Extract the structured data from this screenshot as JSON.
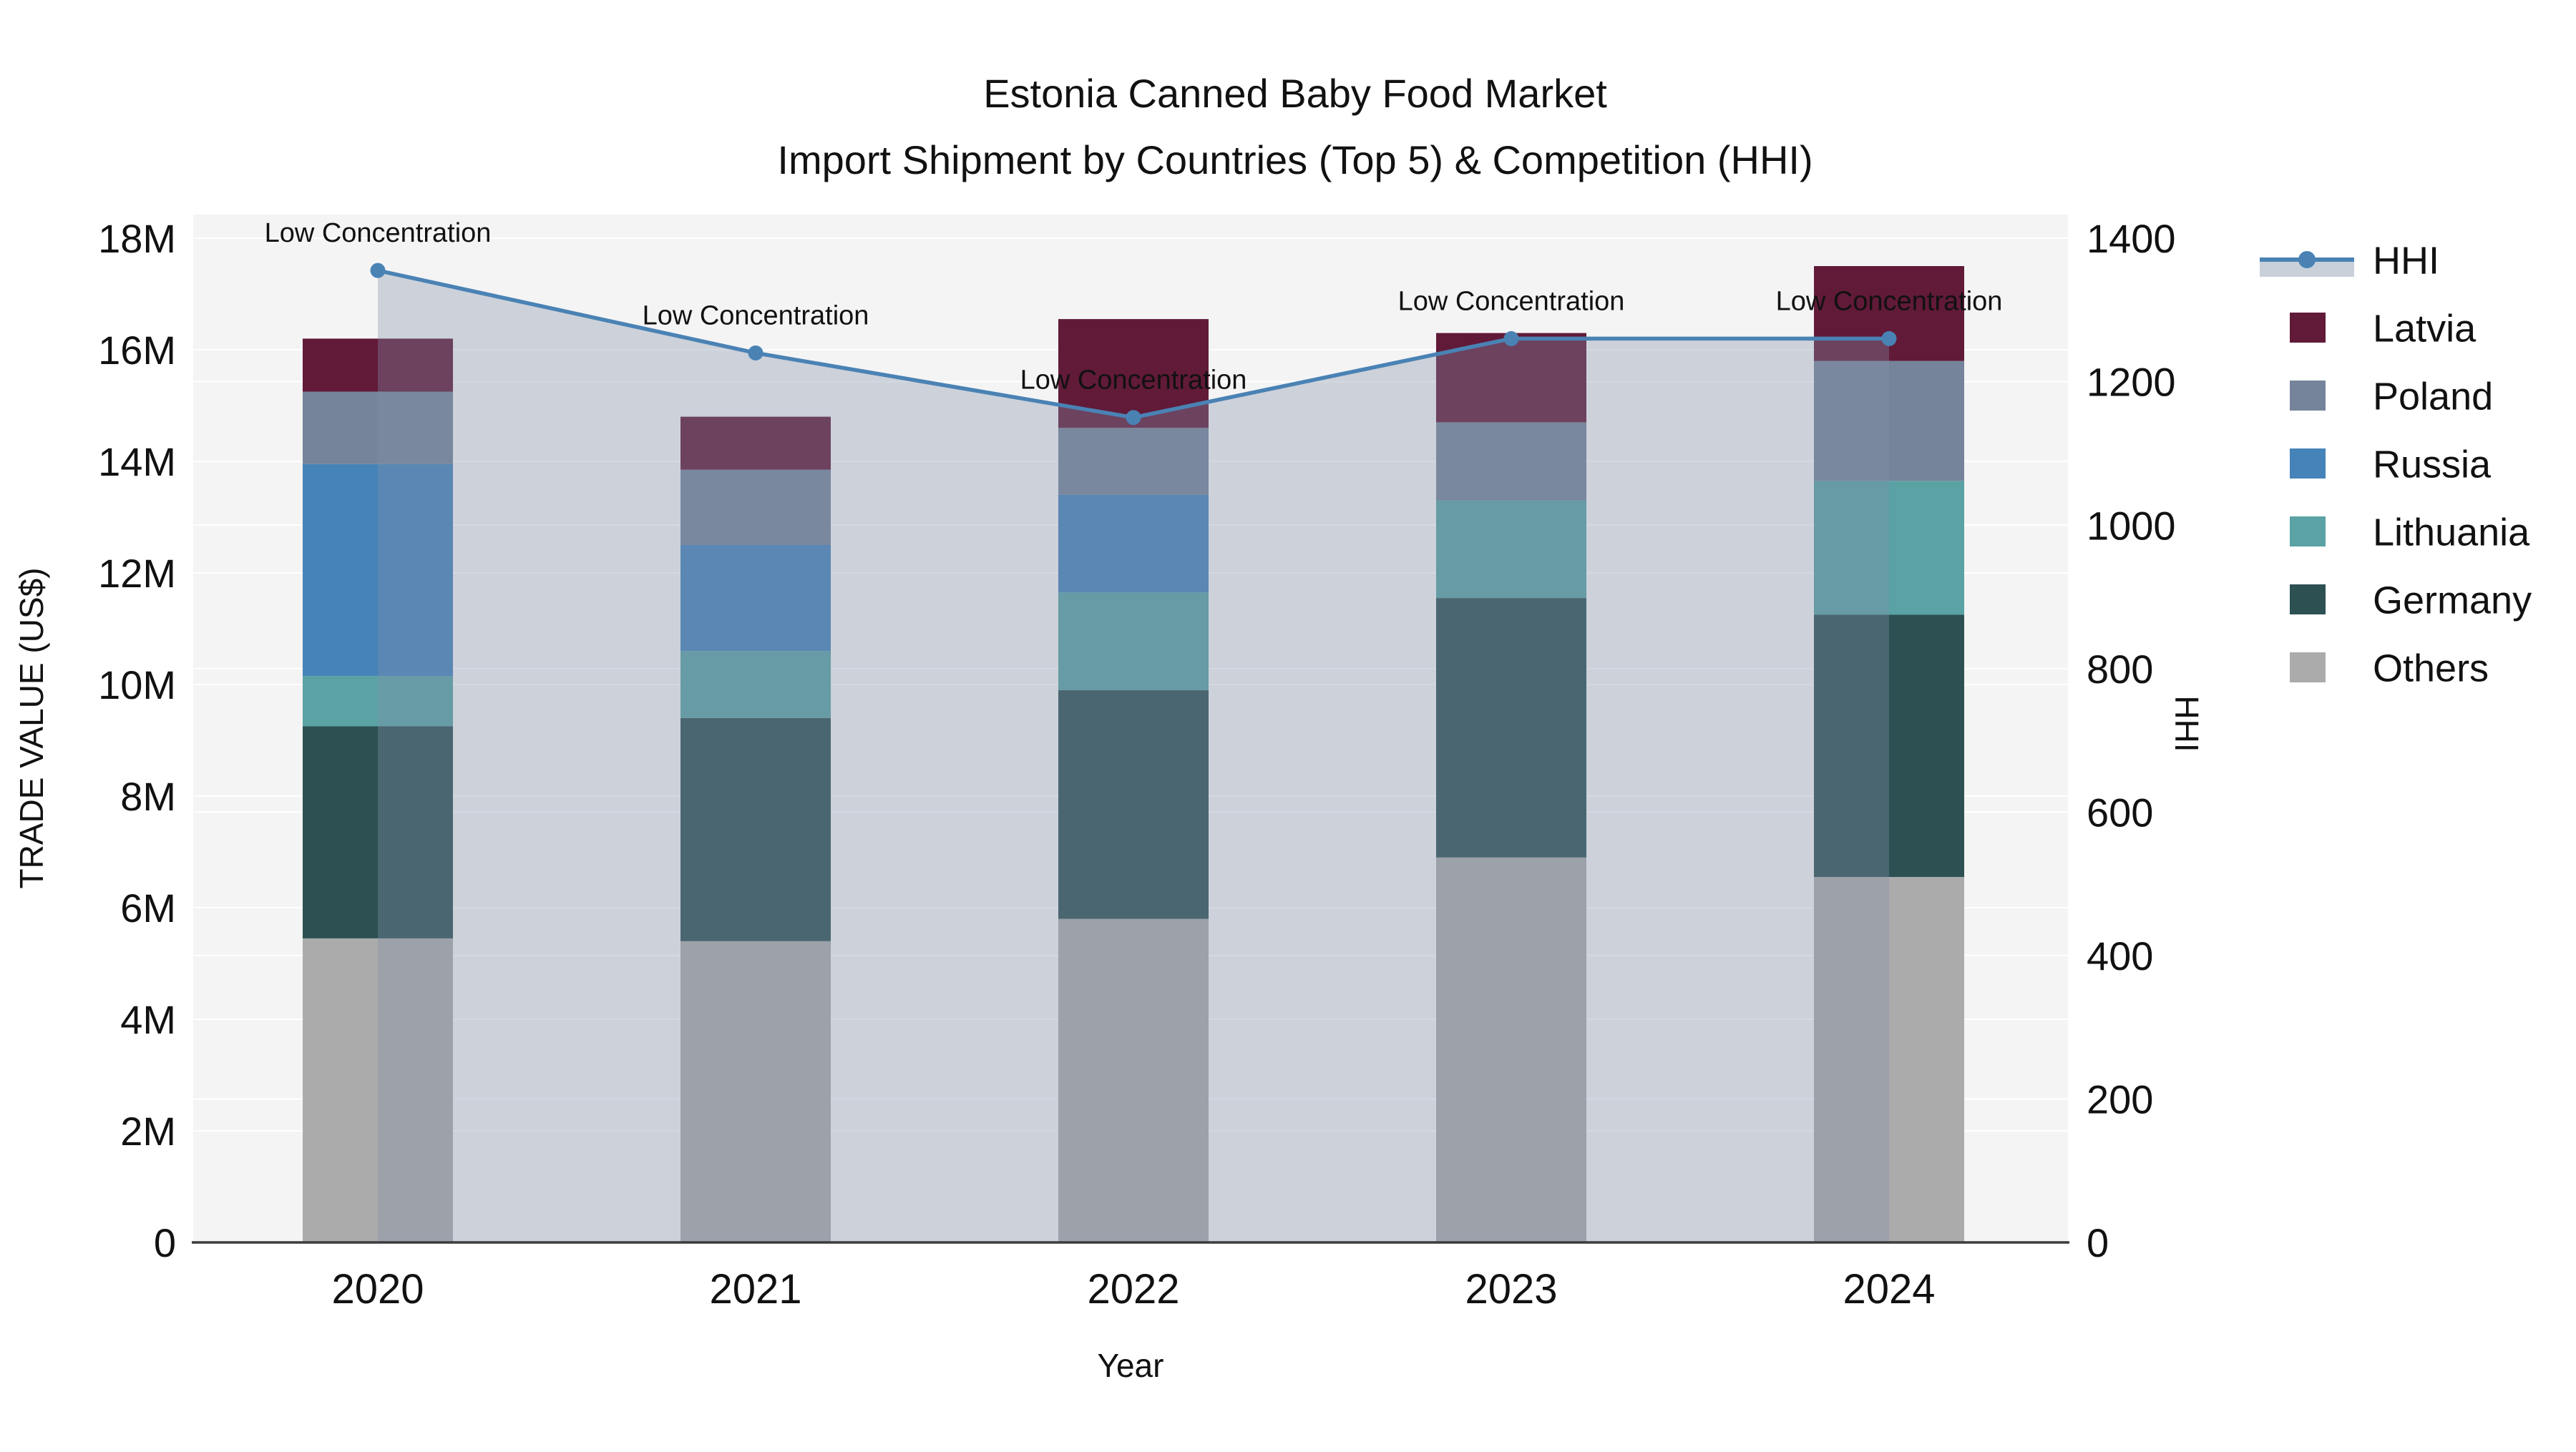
{
  "title": {
    "line1": "Estonia Canned Baby Food Market",
    "line2": "Import Shipment by Countries (Top 5) & Competition (HHI)"
  },
  "axes": {
    "x_title": "Year",
    "y_left_title": "TRADE VALUE (US$)",
    "y_right_title": "HHI",
    "y_left_tick_labels": [
      "0",
      "2M",
      "4M",
      "6M",
      "8M",
      "10M",
      "12M",
      "14M",
      "16M",
      "18M"
    ],
    "y_left_max_musd": 18,
    "y_right_tick_labels": [
      "0",
      "200",
      "400",
      "600",
      "800",
      "1000",
      "1200",
      "1400"
    ],
    "y_right_max": 1400
  },
  "chart_data": {
    "type": "bar+line",
    "categories": [
      "2020",
      "2021",
      "2022",
      "2023",
      "2024"
    ],
    "stack_order_bottom_up": [
      "Others",
      "Germany",
      "Lithuania",
      "Russia",
      "Poland",
      "Latvia"
    ],
    "series": [
      {
        "name": "Latvia",
        "color": "#611a38",
        "values_musd": [
          0.95,
          0.95,
          1.95,
          1.6,
          1.7
        ]
      },
      {
        "name": "Poland",
        "color": "#75849a",
        "values_musd": [
          1.3,
          1.35,
          1.2,
          1.4,
          2.15
        ]
      },
      {
        "name": "Russia",
        "color": "#4583b8",
        "values_musd": [
          3.8,
          1.9,
          1.75,
          0.0,
          0.0
        ]
      },
      {
        "name": "Lithuania",
        "color": "#5aa2a3",
        "values_musd": [
          0.9,
          1.2,
          1.75,
          1.75,
          2.4
        ]
      },
      {
        "name": "Germany",
        "color": "#2d5053",
        "values_musd": [
          3.8,
          4.0,
          4.1,
          4.65,
          4.7
        ]
      },
      {
        "name": "Others",
        "color": "#ababab",
        "values_musd": [
          5.45,
          5.4,
          5.8,
          6.9,
          6.55
        ]
      }
    ],
    "totals_musd": [
      16.2,
      14.8,
      16.55,
      16.3,
      17.5
    ],
    "line": {
      "name": "HHI",
      "color": "#4a82b4",
      "area_fill": "rgba(129,143,169,0.35)",
      "values": [
        1355,
        1240,
        1150,
        1260,
        1260
      ]
    },
    "annotations": [
      "Low Concentration",
      "Low Concentration",
      "Low Concentration",
      "Low Concentration",
      "Low Concentration"
    ],
    "legend_position": "right",
    "grid": true
  },
  "legend": {
    "items": [
      {
        "label": "HHI",
        "type": "line",
        "color": "#4a82b4",
        "band": "#c9d0da"
      },
      {
        "label": "Latvia",
        "type": "swatch",
        "color": "#611a38"
      },
      {
        "label": "Poland",
        "type": "swatch",
        "color": "#75849a"
      },
      {
        "label": "Russia",
        "type": "swatch",
        "color": "#4583b8"
      },
      {
        "label": "Lithuania",
        "type": "swatch",
        "color": "#5aa2a3"
      },
      {
        "label": "Germany",
        "type": "swatch",
        "color": "#2d5053"
      },
      {
        "label": "Others",
        "type": "swatch",
        "color": "#ababab"
      }
    ]
  },
  "style": {
    "plot_bg": "#f4f4f5",
    "grid_color": "#ffffff",
    "axis_line_color": "#3c3c3c",
    "text_color": "#111111"
  }
}
